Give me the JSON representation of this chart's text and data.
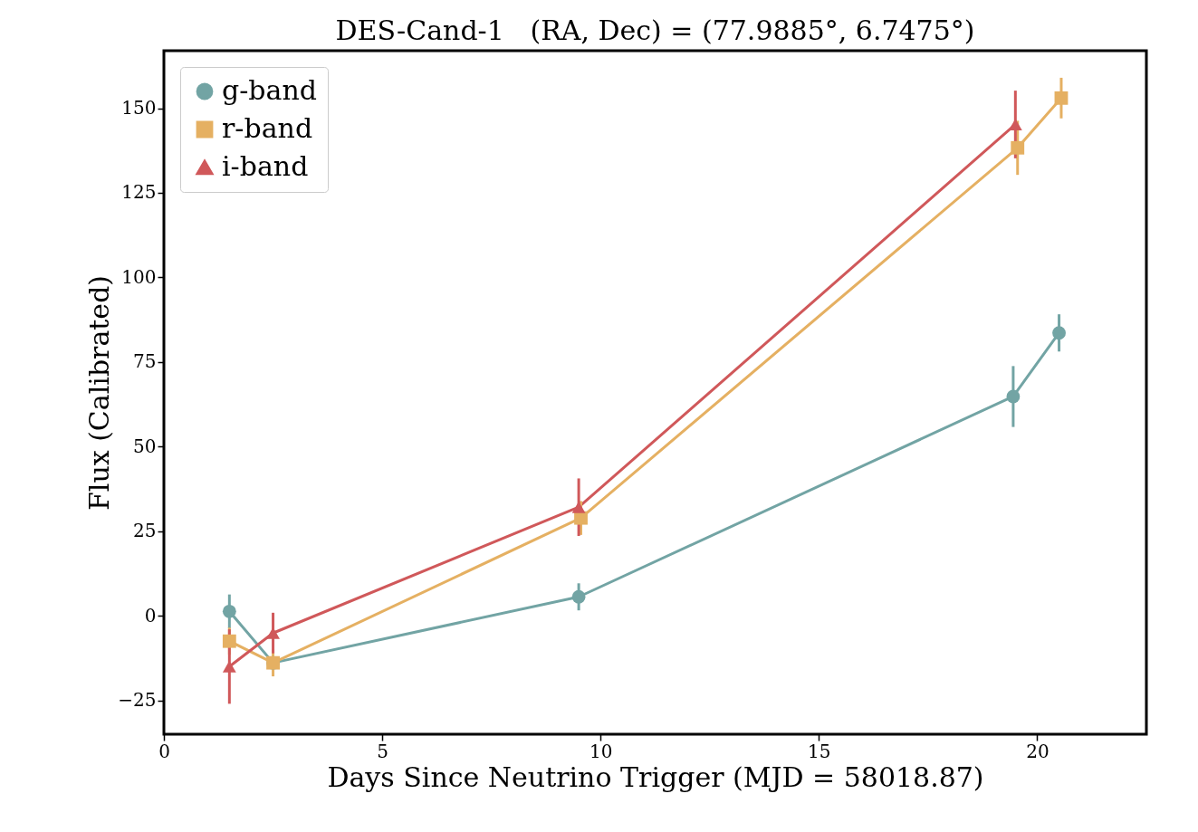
{
  "chart_data": {
    "type": "line",
    "title": "DES-Cand-1   (RA, Dec) = (77.9885°, 6.7475°)",
    "xlabel": "Days Since Neutrino Trigger (MJD = 58018.87)",
    "ylabel": "Flux (Calibrated)",
    "xlim": [
      0,
      22.5
    ],
    "xticks": [
      0,
      5,
      10,
      15,
      20
    ],
    "ylim": [
      -35,
      167
    ],
    "yticks": [
      -25,
      0,
      25,
      50,
      75,
      100,
      125,
      150
    ],
    "grid": false,
    "legend": "top left",
    "line_style": "solid",
    "series": [
      {
        "name": "g-band",
        "color": "#72a4a4",
        "marker": "circle",
        "x": [
          1.5,
          2.5,
          9.5,
          19.45,
          20.5
        ],
        "values": [
          1.3,
          -13.9,
          5.6,
          64.8,
          83.6
        ],
        "errors": [
          5,
          null,
          4,
          9,
          5.5
        ]
      },
      {
        "name": "r-band",
        "color": "#e5b062",
        "marker": "square",
        "x": [
          1.5,
          2.5,
          9.55,
          19.55,
          20.55
        ],
        "values": [
          -7.5,
          -13.9,
          28.9,
          138.3,
          153
        ],
        "errors": [
          4,
          4,
          5,
          8,
          6
        ]
      },
      {
        "name": "i-band",
        "color": "#d0585a",
        "marker": "triangle",
        "x": [
          1.5,
          2.5,
          9.5,
          19.5
        ],
        "values": [
          -15,
          -5.1,
          32.1,
          145.2
        ],
        "errors": [
          11,
          6,
          8.5,
          10
        ]
      }
    ]
  }
}
